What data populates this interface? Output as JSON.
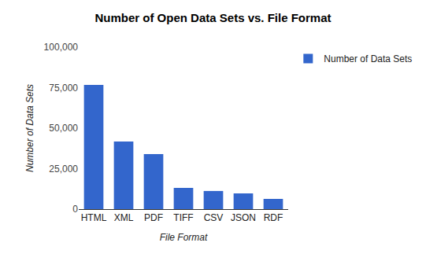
{
  "chart_data": {
    "type": "bar",
    "title": "Number of Open Data Sets vs. File Format",
    "x_label": "File Format",
    "y_label": "Number of Data Sets",
    "categories": [
      "HTML",
      "XML",
      "PDF",
      "TIFF",
      "CSV",
      "JSON",
      "RDF"
    ],
    "series": [
      {
        "name": "Number of Data Sets",
        "color": "#3366cc",
        "values": [
          76700,
          41700,
          34000,
          13100,
          11200,
          9700,
          6300
        ]
      }
    ],
    "ylim": [
      0,
      100000
    ],
    "yticks": [
      0,
      {
        "value": 25000,
        "label": "25,000"
      },
      {
        "value": 50000,
        "label": "50,000"
      },
      {
        "value": 75000,
        "label": "75,000"
      },
      {
        "value": 100000,
        "label": "100,000"
      }
    ],
    "grid": false,
    "legend": "top-right"
  }
}
